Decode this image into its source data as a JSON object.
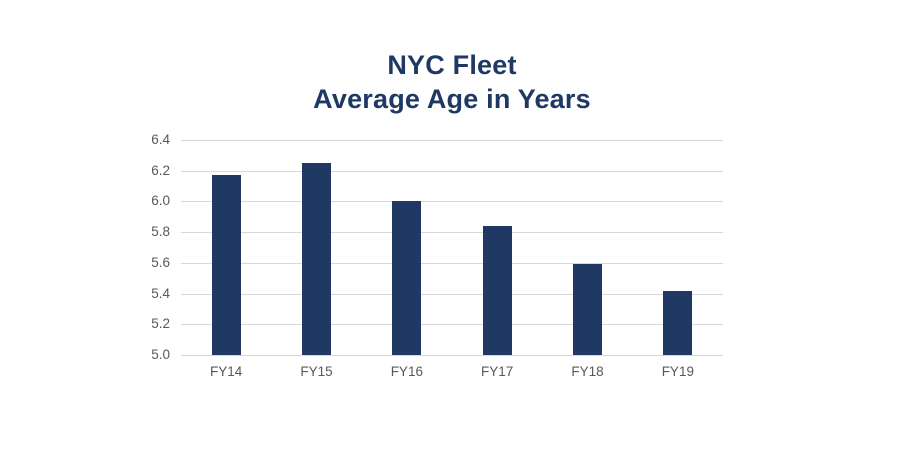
{
  "title": {
    "line1": "NYC Fleet",
    "line2": "Average Age in Years"
  },
  "chart_data": {
    "type": "bar",
    "title": "NYC Fleet\nAverage Age in Years",
    "categories": [
      "FY14",
      "FY15",
      "FY16",
      "FY17",
      "FY18",
      "FY19"
    ],
    "values": [
      6.17,
      6.25,
      6.0,
      5.84,
      5.59,
      5.42
    ],
    "xlabel": "",
    "ylabel": "",
    "ylim": [
      5.0,
      6.4
    ],
    "ytick_labels": [
      "6.4",
      "6.2",
      "6.0",
      "5.8",
      "5.6",
      "5.4",
      "5.2",
      "5.0"
    ],
    "grid": true,
    "legend": "none",
    "colors": {
      "bar": "#1F3864",
      "title": "#1F3864",
      "gridline": "#D9D9D9",
      "tick_text": "#595959",
      "background": "#FFFFFF"
    }
  }
}
